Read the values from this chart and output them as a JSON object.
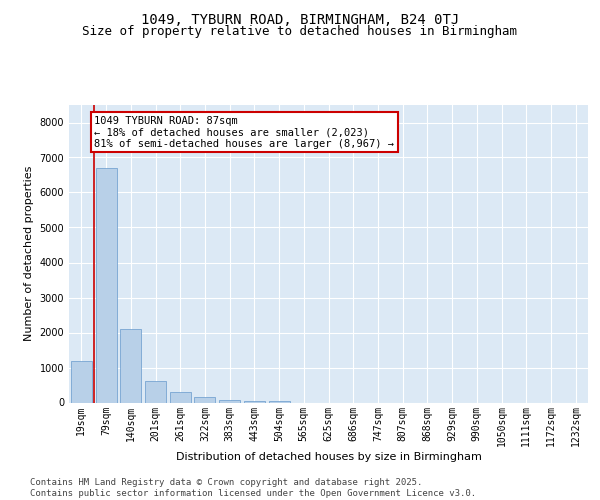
{
  "title1": "1049, TYBURN ROAD, BIRMINGHAM, B24 0TJ",
  "title2": "Size of property relative to detached houses in Birmingham",
  "xlabel": "Distribution of detached houses by size in Birmingham",
  "ylabel": "Number of detached properties",
  "categories": [
    "19sqm",
    "79sqm",
    "140sqm",
    "201sqm",
    "261sqm",
    "322sqm",
    "383sqm",
    "443sqm",
    "504sqm",
    "565sqm",
    "625sqm",
    "686sqm",
    "747sqm",
    "807sqm",
    "868sqm",
    "929sqm",
    "990sqm",
    "1050sqm",
    "1111sqm",
    "1172sqm",
    "1232sqm"
  ],
  "values": [
    1200,
    6700,
    2100,
    620,
    310,
    150,
    60,
    30,
    50,
    0,
    0,
    0,
    0,
    0,
    0,
    0,
    0,
    0,
    0,
    0,
    0
  ],
  "bar_color": "#b8d0e8",
  "bar_edge_color": "#6699cc",
  "vline_x": 0.5,
  "vline_color": "#cc0000",
  "annotation_line1": "1049 TYBURN ROAD: 87sqm",
  "annotation_line2": "← 18% of detached houses are smaller (2,023)",
  "annotation_line3": "81% of semi-detached houses are larger (8,967) →",
  "box_color": "#cc0000",
  "ylim": [
    0,
    8500
  ],
  "yticks": [
    0,
    1000,
    2000,
    3000,
    4000,
    5000,
    6000,
    7000,
    8000
  ],
  "background_color": "#dce9f5",
  "grid_color": "#ffffff",
  "footer_text": "Contains HM Land Registry data © Crown copyright and database right 2025.\nContains public sector information licensed under the Open Government Licence v3.0.",
  "title_fontsize": 10,
  "subtitle_fontsize": 9,
  "axis_label_fontsize": 8,
  "tick_fontsize": 7,
  "annotation_fontsize": 7.5,
  "footer_fontsize": 6.5
}
